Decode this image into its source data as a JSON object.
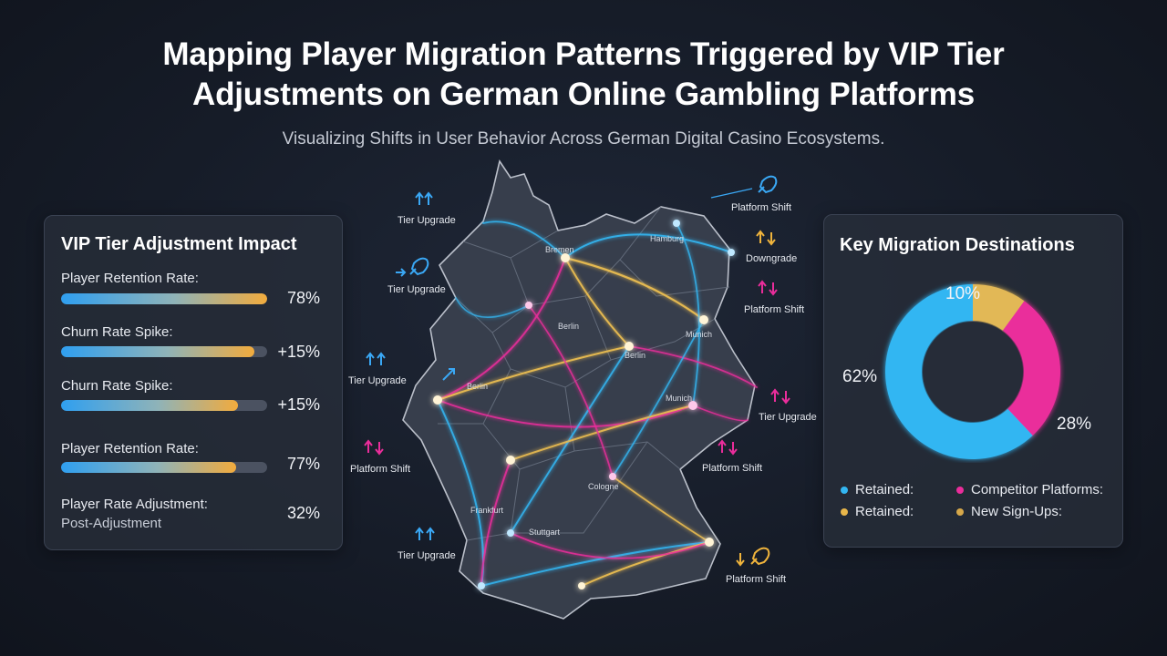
{
  "header": {
    "title_line1": "Mapping Player Migration Patterns Triggered by VIP Tier",
    "title_line2": "Adjustments on German Online Gambling Platforms",
    "subtitle": "Visualizing Shifts in User Behavior Across German Digital Casino Ecosystems."
  },
  "impact_panel": {
    "title": "VIP Tier Adjustment Impact",
    "metrics": [
      {
        "label": "Player Retention Rate:",
        "value": "78%",
        "fill": 1.0
      },
      {
        "label": "Churn Rate Spike:",
        "value": "+15%",
        "fill": 0.94
      },
      {
        "label": "Churn Rate Spike:",
        "value": "+15%",
        "fill": 0.86
      },
      {
        "label": "Player Retention Rate:",
        "value": "77%",
        "fill": 0.85
      },
      {
        "label": "Player Rate Adjustment:",
        "sublabel": "Post-Adjustment",
        "value": "32%"
      }
    ]
  },
  "map": {
    "cities": [
      "Hamburg",
      "Berlin",
      "Berlin",
      "Munich",
      "Munich",
      "Berlin",
      "Cologne",
      "Frankfurt",
      "Stuttgart",
      "Bremen"
    ],
    "annotations": [
      {
        "label": "Tier Upgrade",
        "icon": "arrows-up-icon",
        "color": "#3aa8f5"
      },
      {
        "label": "Platform Shift",
        "icon": "rocket-icon",
        "color": "#3aa8f5"
      },
      {
        "label": "Tier Upgrade",
        "icon": "rocket-icon",
        "color": "#3aa8f5"
      },
      {
        "label": "Downgrade",
        "icon": "arrows-updown-icon",
        "color": "#f0b43c"
      },
      {
        "label": "Platform Shift",
        "icon": "arrows-updown-icon",
        "color": "#ea2d9b"
      },
      {
        "label": "Tier Upgrade",
        "icon": "arrows-up-icon",
        "color": "#3aa8f5"
      },
      {
        "label": "Tier Upgrade",
        "icon": "arrows-updown-icon",
        "color": "#ea2d9b"
      },
      {
        "label": "Platform Shift",
        "icon": "arrows-updown-icon",
        "color": "#ea2d9b"
      },
      {
        "label": "Platform Shift",
        "icon": "arrows-updown-icon",
        "color": "#ea2d9b"
      },
      {
        "label": "Tier Upgrade",
        "icon": "arrows-up-icon",
        "color": "#3aa8f5"
      },
      {
        "label": "Platform Shift",
        "icon": "rocket-icon",
        "color": "#f0b43c"
      }
    ]
  },
  "destinations_panel": {
    "title": "Key Migration Destinations",
    "legend": [
      {
        "label": "Retained:",
        "color": "#33b6f2"
      },
      {
        "label": "Competitor Platforms:",
        "color": "#ea2d9b"
      },
      {
        "label": "Retained:",
        "color": "#e8b64a"
      },
      {
        "label": "New Sign-Ups:",
        "color": "#d6a84a"
      }
    ]
  },
  "chart_data": {
    "type": "pie",
    "donut": true,
    "title": "Key Migration Destinations",
    "slices": [
      {
        "label": "62%",
        "value": 62,
        "color": "#33b6f2"
      },
      {
        "label": "28%",
        "value": 28,
        "color": "#ea2d9b"
      },
      {
        "label": "10%",
        "value": 10,
        "color": "#e2b857"
      }
    ]
  }
}
